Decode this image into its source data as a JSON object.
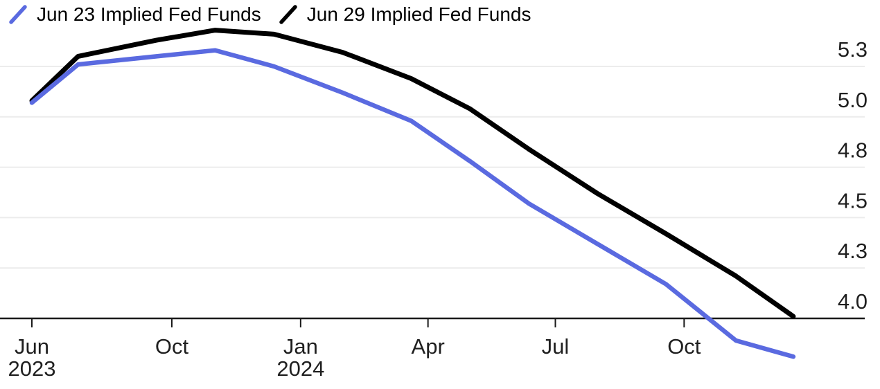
{
  "legend": {
    "items": [
      {
        "label": "Jun 23 Implied Fed Funds",
        "color": "#5a6ae0"
      },
      {
        "label": "Jun 29 Implied Fed Funds",
        "color": "#000000"
      }
    ]
  },
  "chart_data": {
    "type": "line",
    "title": "",
    "legend_position": "top-left",
    "grid": "horizontal",
    "x_axis": {
      "domain_start": "2023-06-23",
      "domain_end": "2024-12-18",
      "ticks": [
        {
          "label": "Jun",
          "sublabel": "2023",
          "date": "2023-06-23"
        },
        {
          "label": "Oct",
          "sublabel": "",
          "date": "2023-10-01"
        },
        {
          "label": "Jan",
          "sublabel": "2024",
          "date": "2024-01-01"
        },
        {
          "label": "Apr",
          "sublabel": "",
          "date": "2024-04-01"
        },
        {
          "label": "Jul",
          "sublabel": "",
          "date": "2024-07-01"
        },
        {
          "label": "Oct",
          "sublabel": "",
          "date": "2024-10-01"
        }
      ]
    },
    "y_axis": {
      "baseline_value": 4.0,
      "ticks": [
        {
          "label": "5.3",
          "value": 5.25
        },
        {
          "label": "5.0",
          "value": 5.0
        },
        {
          "label": "4.8",
          "value": 4.75
        },
        {
          "label": "4.5",
          "value": 4.5
        },
        {
          "label": "4.3",
          "value": 4.25
        },
        {
          "label": "4.0",
          "value": 4.0
        }
      ]
    },
    "series": [
      {
        "name": "Jun 23 Implied Fed Funds",
        "color": "#5a6ae0",
        "stroke_width": 6.5,
        "points": [
          [
            "2023-06-23",
            5.07
          ],
          [
            "2023-07-26",
            5.26
          ],
          [
            "2023-09-20",
            5.3
          ],
          [
            "2023-11-01",
            5.33
          ],
          [
            "2023-12-13",
            5.25
          ],
          [
            "2024-01-31",
            5.12
          ],
          [
            "2024-03-20",
            4.98
          ],
          [
            "2024-05-01",
            4.78
          ],
          [
            "2024-06-12",
            4.57
          ],
          [
            "2024-07-31",
            4.37
          ],
          [
            "2024-09-18",
            4.17
          ],
          [
            "2024-11-07",
            3.89
          ],
          [
            "2024-12-18",
            3.81
          ]
        ]
      },
      {
        "name": "Jun 29 Implied Fed Funds",
        "color": "#000000",
        "stroke_width": 7,
        "points": [
          [
            "2023-06-23",
            5.08
          ],
          [
            "2023-07-26",
            5.3
          ],
          [
            "2023-09-20",
            5.38
          ],
          [
            "2023-11-01",
            5.43
          ],
          [
            "2023-12-13",
            5.41
          ],
          [
            "2024-01-31",
            5.32
          ],
          [
            "2024-03-20",
            5.19
          ],
          [
            "2024-05-01",
            5.04
          ],
          [
            "2024-06-12",
            4.84
          ],
          [
            "2024-07-31",
            4.62
          ],
          [
            "2024-09-18",
            4.42
          ],
          [
            "2024-11-07",
            4.21
          ],
          [
            "2024-12-18",
            4.01
          ]
        ]
      }
    ]
  }
}
